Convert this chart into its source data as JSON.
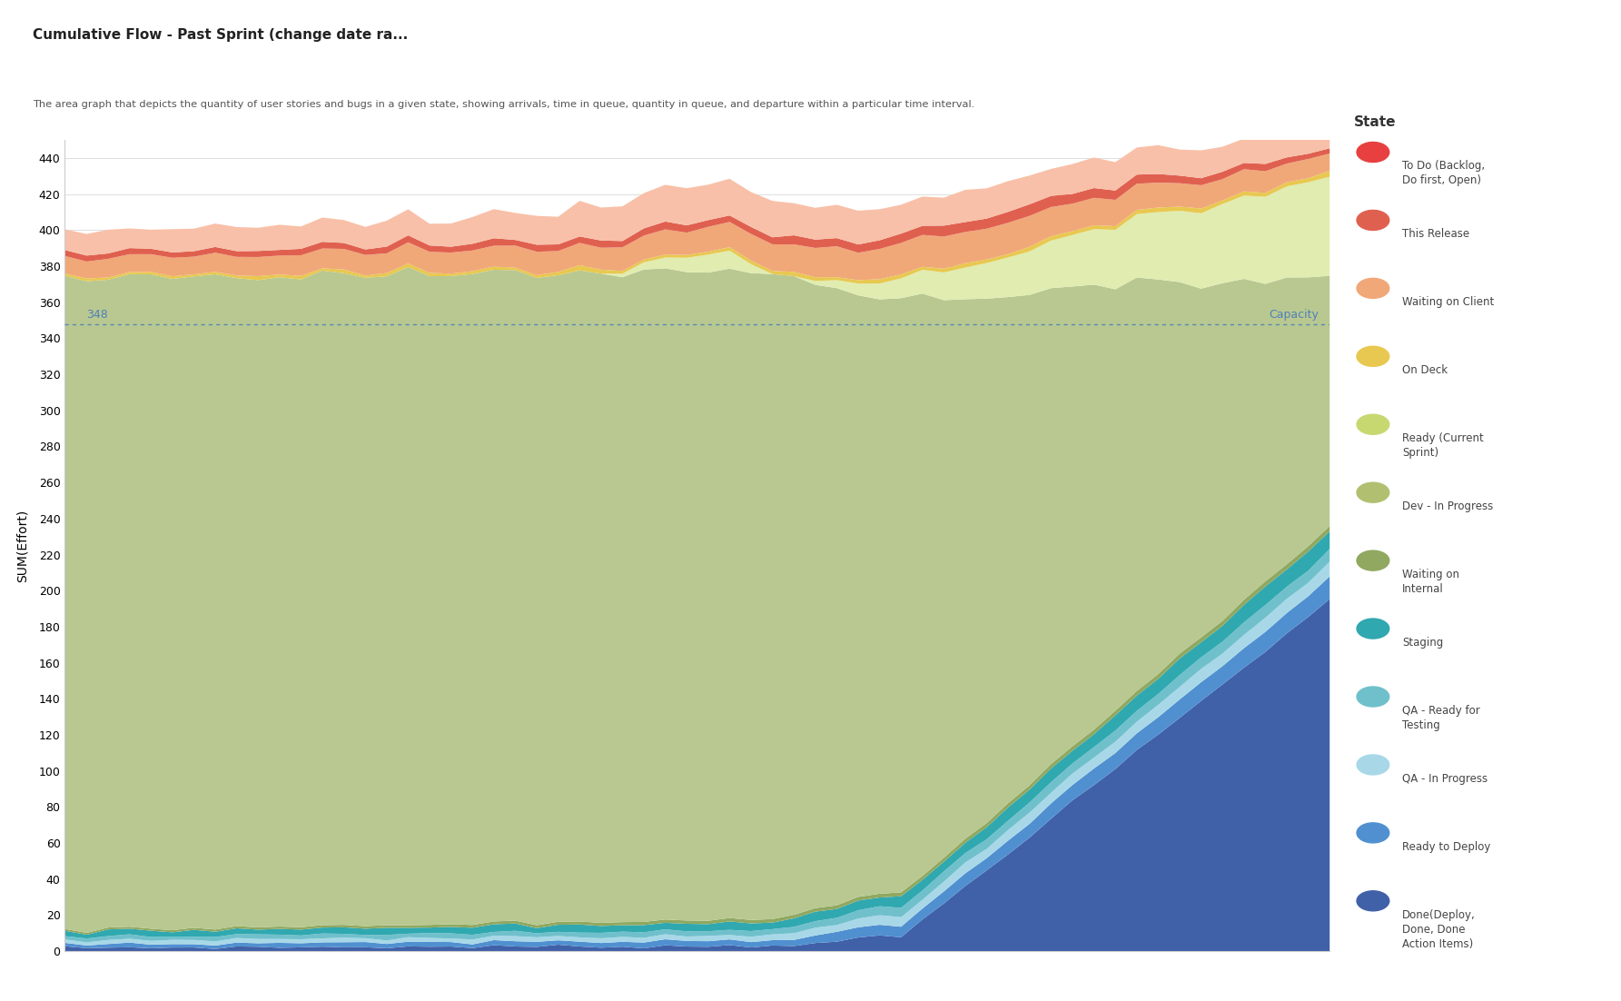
{
  "title": "Cumulative Flow - Past Sprint (change date ra...",
  "subtitle": "The area graph that depicts the quantity of user stories and bugs in a given state, showing arrivals, time in queue, quantity in queue, and departure within a particular time interval.",
  "ylabel": "SUM(Effort)",
  "ylim": [
    0,
    450
  ],
  "yticks": [
    0,
    20,
    40,
    60,
    80,
    100,
    120,
    140,
    160,
    180,
    200,
    220,
    240,
    260,
    280,
    300,
    320,
    340,
    360,
    380,
    400,
    420,
    440
  ],
  "capacity_line": 348,
  "capacity_label": "Capacity",
  "n_points": 60,
  "background_color": "#ffffff",
  "plot_bg": "#ffffff",
  "grid_color": "#dddddd",
  "legend_items": [
    {
      "color": "#e84040",
      "label": "To Do (Backlog,\nDo first, Open)"
    },
    {
      "color": "#e06050",
      "label": "This Release"
    },
    {
      "color": "#f0a878",
      "label": "Waiting on Client"
    },
    {
      "color": "#e8c850",
      "label": "On Deck"
    },
    {
      "color": "#c8d870",
      "label": "Ready (Current\nSprint)"
    },
    {
      "color": "#b0c070",
      "label": "Dev - In Progress"
    },
    {
      "color": "#90a860",
      "label": "Waiting on\nInternal"
    },
    {
      "color": "#30a8b0",
      "label": "Staging"
    },
    {
      "color": "#70c0cc",
      "label": "QA - Ready for\nTesting"
    },
    {
      "color": "#a8d8e8",
      "label": "QA - In Progress"
    },
    {
      "color": "#5090d0",
      "label": "Ready to Deploy"
    },
    {
      "color": "#4060a8",
      "label": "Done(Deploy,\nDone, Done\nAction Items)"
    }
  ]
}
